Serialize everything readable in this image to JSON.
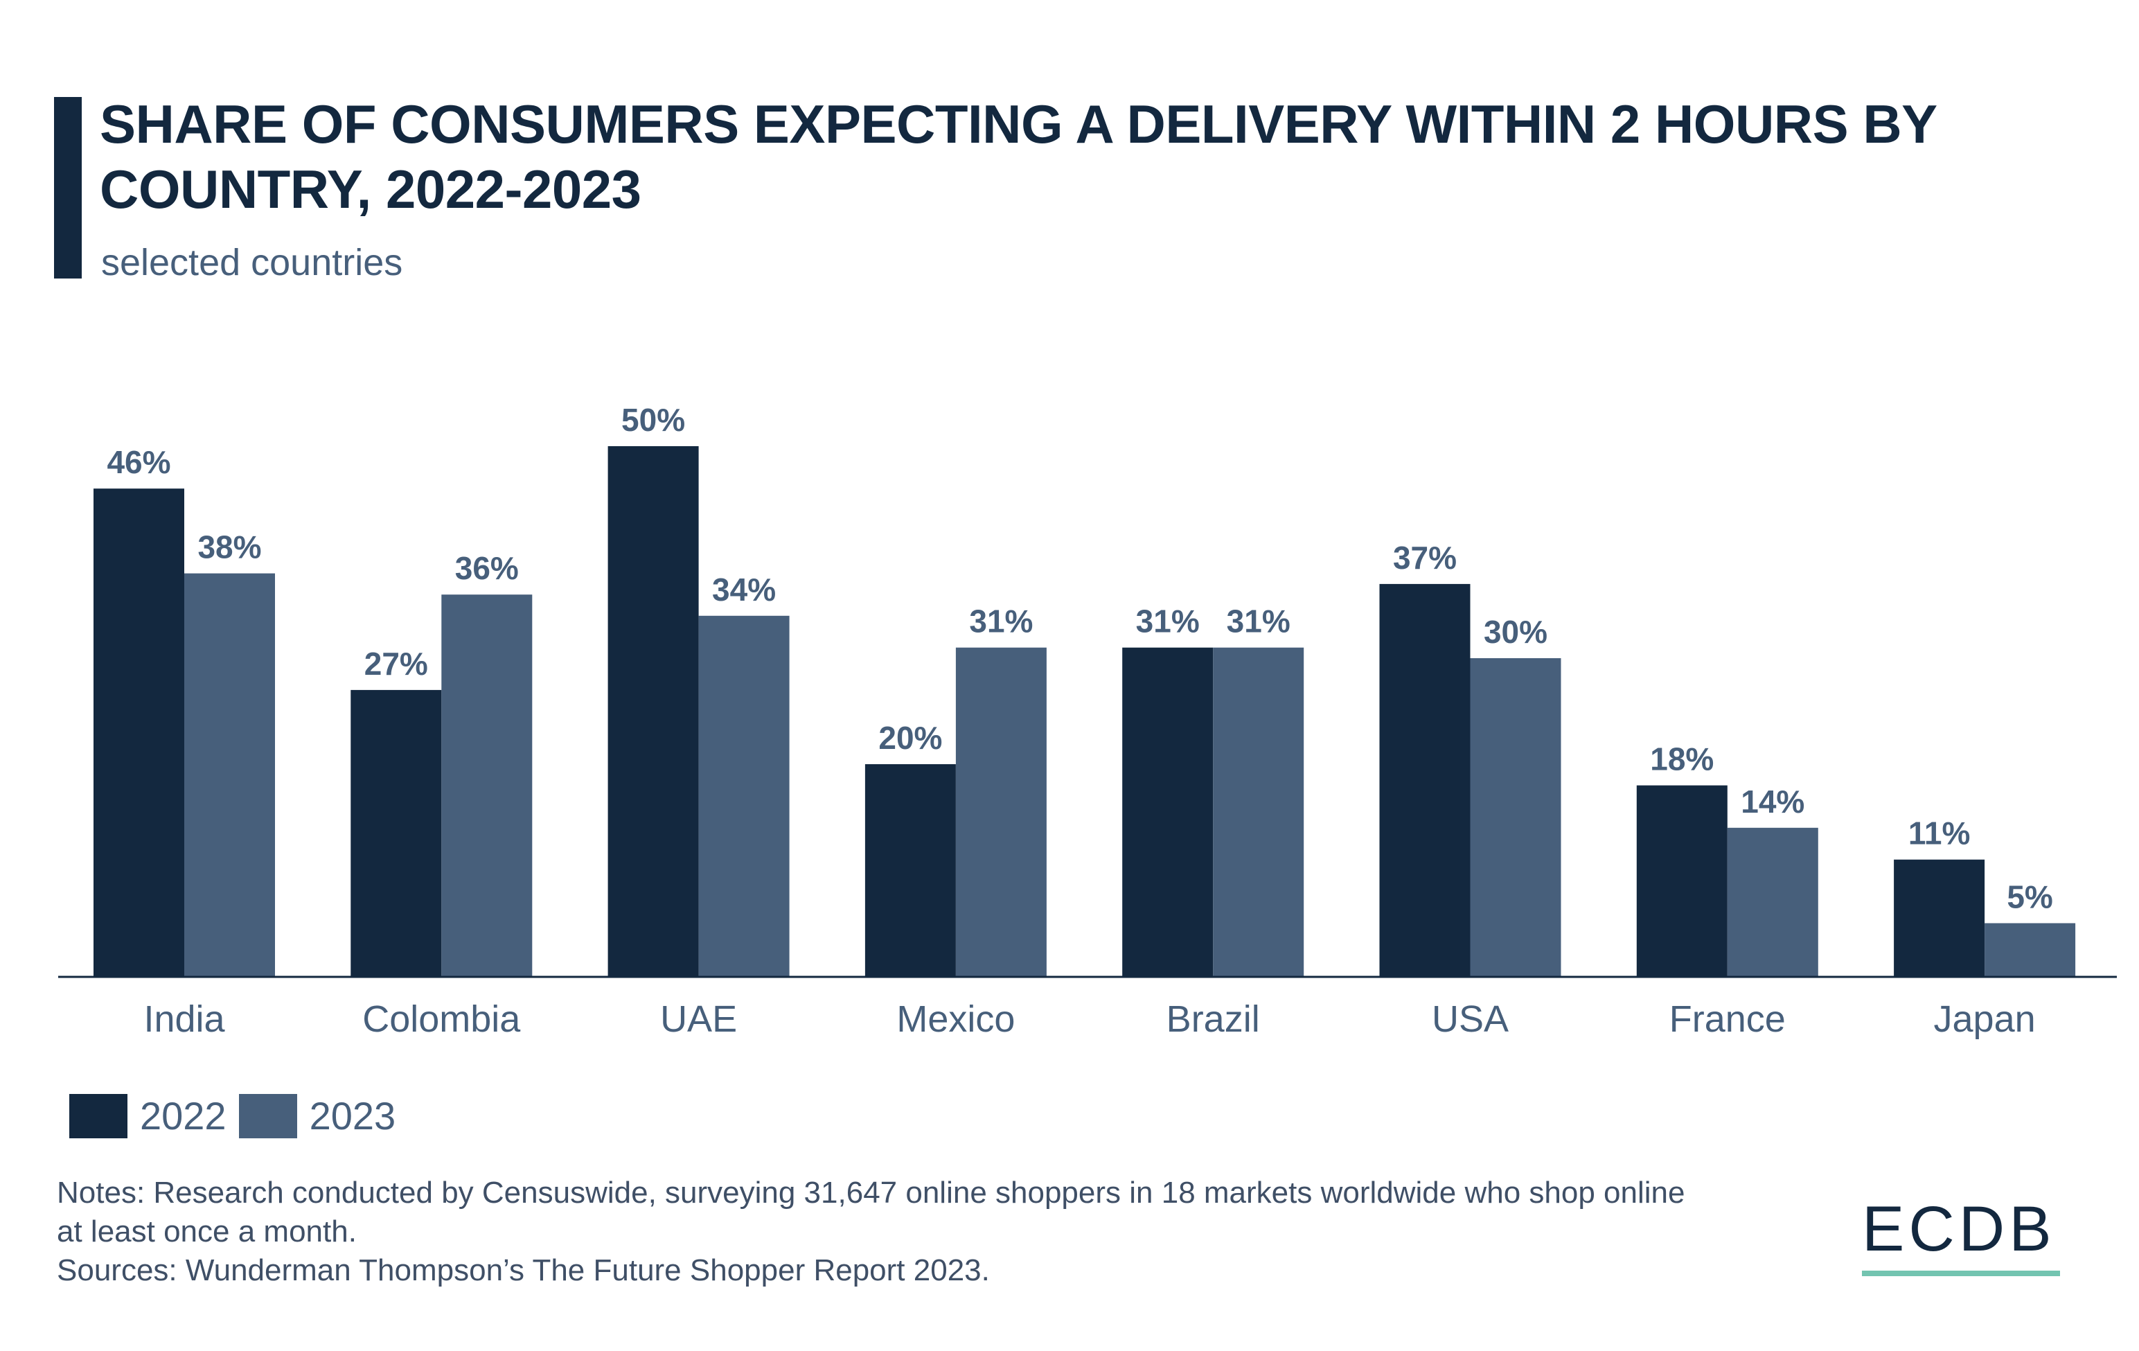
{
  "header": {
    "title": "SHARE OF CONSUMERS EXPECTING A DELIVERY WITHIN 2 HOURS BY COUNTRY, 2022-2023",
    "subtitle": "selected countries"
  },
  "chart_data": {
    "type": "bar",
    "title": "SHARE OF CONSUMERS EXPECTING A DELIVERY WITHIN 2 HOURS BY COUNTRY, 2022-2023",
    "subtitle": "selected countries",
    "categories": [
      "India",
      "Colombia",
      "UAE",
      "Mexico",
      "Brazil",
      "USA",
      "France",
      "Japan"
    ],
    "series": [
      {
        "name": "2022",
        "color": "#13283f",
        "values": [
          46,
          27,
          50,
          20,
          31,
          37,
          18,
          11
        ],
        "labels": [
          "46%",
          "27%",
          "50%",
          "20%",
          "31%",
          "37%",
          "18%",
          "11%"
        ]
      },
      {
        "name": "2023",
        "color": "#475f7b",
        "values": [
          38,
          36,
          34,
          31,
          31,
          30,
          14,
          5
        ],
        "labels": [
          "38%",
          "36%",
          "34%",
          "31%",
          "31%",
          "30%",
          "14%",
          "5%"
        ]
      }
    ],
    "unit": "%",
    "ylim": [
      0,
      50
    ],
    "grid": false,
    "legend": "bottom-left",
    "xlabel": "",
    "ylabel": ""
  },
  "legend": {
    "items": [
      {
        "label": "2022",
        "color": "#13283f"
      },
      {
        "label": "2023",
        "color": "#475f7b"
      }
    ]
  },
  "footer": {
    "notes": "Notes: Research conducted by Censuswide, surveying 31,647 online shoppers in 18 markets worldwide who shop online at least once a month.",
    "sources": "Sources: Wunderman Thompson’s The Future Shopper Report 2023.",
    "logo": "ECDB",
    "logo_accent": "#73c4b0"
  }
}
